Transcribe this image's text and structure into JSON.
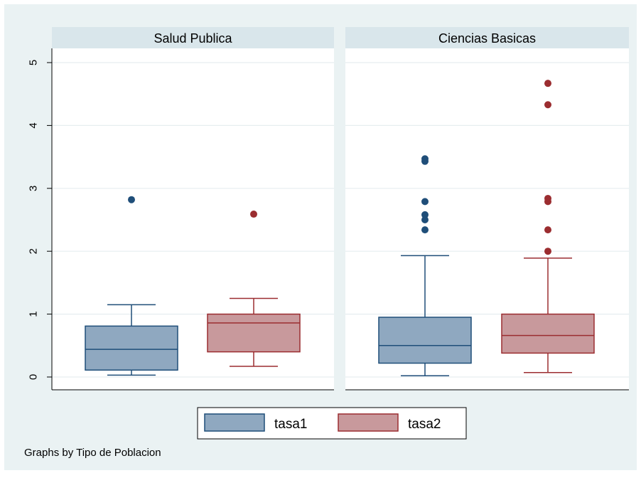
{
  "chart_data": {
    "type": "boxplot",
    "by_label": "Graphs by Tipo de Poblacion",
    "ylim": [
      0,
      5
    ],
    "yticks": [
      "0",
      "1",
      "2",
      "3",
      "4",
      "5"
    ],
    "grid": true,
    "legend_position": "bottom",
    "legend": [
      {
        "name": "tasa1",
        "color": "#8fa8c0",
        "stroke": "#1f4e79"
      },
      {
        "name": "tasa2",
        "color": "#c8999c",
        "stroke": "#9b2d30"
      }
    ],
    "panels": [
      {
        "title": "Salud Publica",
        "boxes": [
          {
            "series": "tasa1",
            "whisker_low": 0.03,
            "q1": 0.11,
            "median": 0.44,
            "q3": 0.81,
            "whisker_high": 1.15,
            "outliers": [
              2.82
            ]
          },
          {
            "series": "tasa2",
            "whisker_low": 0.17,
            "q1": 0.4,
            "median": 0.86,
            "q3": 1.0,
            "whisker_high": 1.25,
            "outliers": [
              2.59
            ]
          }
        ]
      },
      {
        "title": "Ciencias Basicas",
        "boxes": [
          {
            "series": "tasa1",
            "whisker_low": 0.02,
            "q1": 0.22,
            "median": 0.5,
            "q3": 0.95,
            "whisker_high": 1.93,
            "outliers": [
              2.34,
              2.5,
              2.58,
              2.79,
              3.43,
              3.47
            ]
          },
          {
            "series": "tasa2",
            "whisker_low": 0.07,
            "q1": 0.38,
            "median": 0.66,
            "q3": 1.0,
            "whisker_high": 1.89,
            "outliers": [
              2.0,
              2.34,
              2.79,
              2.84,
              4.33,
              4.67
            ]
          }
        ]
      }
    ]
  },
  "colors": {
    "page_bg": "#eaf2f3",
    "panel_bg": "#ffffff",
    "strip_bg": "#d9e6eb",
    "grid": "#e6eef0",
    "axis": "#000000"
  }
}
